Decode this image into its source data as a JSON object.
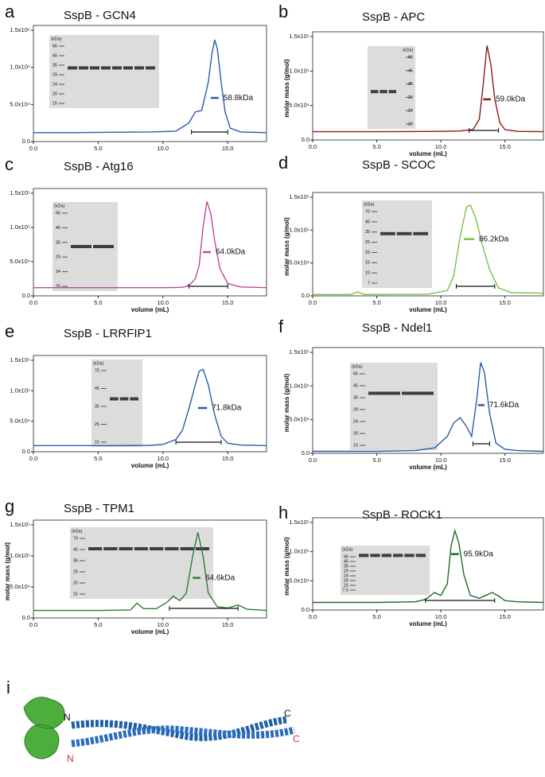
{
  "chart_data": [
    {
      "type": "line",
      "panel": "a",
      "title": "SspB - GCN4",
      "color": "#2a5caa",
      "x": [
        0,
        3,
        6,
        9,
        11,
        12,
        12.5,
        13,
        13.5,
        13.8,
        14,
        14.2,
        14.5,
        14.8,
        15.2,
        16,
        18
      ],
      "values": [
        12000,
        12000,
        12500,
        13000,
        14000,
        25000,
        40000,
        42000,
        80000,
        120000,
        137000,
        125000,
        80000,
        40000,
        18000,
        13000,
        12000
      ],
      "mass": {
        "x": [
          13.7,
          14.3
        ],
        "values": [
          58800,
          58800
        ]
      },
      "annotation": "58.8kDa",
      "range": [
        12.2,
        15.0
      ],
      "gel": {
        "unit": "(kDa)",
        "markers": [
          "66",
          "45",
          "35",
          "29",
          "24",
          "20",
          "15"
        ]
      },
      "xlim": [
        0,
        18
      ],
      "ylim": [
        0,
        150000
      ],
      "xticks": [
        {
          "value": 0,
          "label": "0.0"
        },
        {
          "value": 5,
          "label": "5.0"
        },
        {
          "value": 10,
          "label": "10.0"
        },
        {
          "value": 15,
          "label": "15.0"
        }
      ],
      "yticks": [
        {
          "value": 0,
          "label": "0.0"
        },
        {
          "value": 50000,
          "label": "5.0x10⁴"
        },
        {
          "value": 100000,
          "label": "1.0x10⁵"
        },
        {
          "value": 150000,
          "label": "1.5x10⁵"
        }
      ]
    },
    {
      "type": "line",
      "panel": "b",
      "title": "SspB - APC",
      "color": "#8b1a1a",
      "x_label": "volume (mL)",
      "y_label": "molar mass (g/mol)",
      "x": [
        0,
        5,
        10,
        11.5,
        12.5,
        13,
        13.3,
        13.6,
        13.9,
        14.2,
        14.6,
        15,
        16,
        18
      ],
      "values": [
        12000,
        12000,
        12500,
        13000,
        15000,
        30000,
        80000,
        137000,
        110000,
        60000,
        25000,
        15000,
        12500,
        12000
      ],
      "mass": {
        "x": [
          13.3,
          13.9
        ],
        "values": [
          59000,
          59000
        ]
      },
      "annotation": "59.0kDa",
      "range": [
        12.2,
        14.5
      ],
      "gel": {
        "unit": "(kDa)",
        "markers": [
          "66",
          "45",
          "35",
          "29",
          "24",
          "20"
        ]
      },
      "xlim": [
        0,
        18
      ],
      "ylim": [
        0,
        150000
      ],
      "xticks": [
        {
          "value": 0,
          "label": "0.0"
        },
        {
          "value": 5,
          "label": "5.0"
        },
        {
          "value": 10,
          "label": "10.0"
        },
        {
          "value": 15,
          "label": "15.0"
        }
      ],
      "yticks": [
        {
          "value": 0,
          "label": "0.0"
        },
        {
          "value": 50000,
          "label": "5.0x10⁴"
        },
        {
          "value": 100000,
          "label": "1.0x10⁵"
        },
        {
          "value": 150000,
          "label": "1.5x10⁵"
        }
      ]
    },
    {
      "type": "line",
      "panel": "c",
      "title": "SspB - Atg16",
      "color": "#c0489a",
      "x_label": "volume (mL)",
      "x": [
        0,
        5,
        10,
        11.5,
        12,
        12.5,
        12.8,
        13.1,
        13.4,
        13.7,
        14,
        14.4,
        15,
        16,
        18
      ],
      "values": [
        12000,
        12000,
        12000,
        12500,
        15000,
        25000,
        45000,
        100000,
        138000,
        120000,
        80000,
        40000,
        18000,
        13000,
        12000
      ],
      "mass": {
        "x": [
          13.1,
          13.7
        ],
        "values": [
          64000,
          64000
        ]
      },
      "annotation": "64.0kDa",
      "range": [
        12.0,
        15.0
      ],
      "gel": {
        "unit": "(kDa)",
        "markers": [
          "66",
          "45",
          "35",
          "29",
          "24",
          "20"
        ]
      },
      "xlim": [
        0,
        18
      ],
      "ylim": [
        0,
        150000
      ],
      "xticks": [
        {
          "value": 0,
          "label": "0.0"
        },
        {
          "value": 5,
          "label": "5.0"
        },
        {
          "value": 10,
          "label": "10.0"
        },
        {
          "value": 15,
          "label": "15.0"
        }
      ],
      "yticks": [
        {
          "value": 0,
          "label": "0.0"
        },
        {
          "value": 50000,
          "label": "5.0x10⁴"
        },
        {
          "value": 100000,
          "label": "1.0x10⁵"
        },
        {
          "value": 150000,
          "label": "1.5x10⁵"
        }
      ]
    },
    {
      "type": "line",
      "panel": "d",
      "title": "SspB - SCOC",
      "color": "#7ac143",
      "x_label": "volume (mL)",
      "y_label": "molar mass (g/mol)",
      "x": [
        0,
        3,
        3.5,
        4,
        9,
        10.5,
        11,
        11.5,
        12,
        12.3,
        12.7,
        13.2,
        13.8,
        14.5,
        15.5,
        18
      ],
      "values": [
        2000,
        2000,
        6000,
        2000,
        2500,
        8000,
        30000,
        90000,
        135000,
        138000,
        120000,
        80000,
        40000,
        12000,
        5000,
        4000
      ],
      "mass": {
        "x": [
          11.8,
          12.6
        ],
        "values": [
          86200,
          86200
        ]
      },
      "annotation": "86.2kDa",
      "range": [
        11.2,
        14.2
      ],
      "gel": {
        "unit": "(kDa)",
        "markers": [
          "70",
          "45",
          "35",
          "25",
          "20",
          "15",
          "10",
          "7"
        ]
      },
      "xlim": [
        0,
        18
      ],
      "ylim": [
        0,
        150000
      ],
      "xticks": [
        {
          "value": 0,
          "label": "0.0"
        },
        {
          "value": 5,
          "label": "5.0"
        },
        {
          "value": 10,
          "label": "10.0"
        },
        {
          "value": 15,
          "label": "15.0"
        }
      ],
      "yticks": [
        {
          "value": 0,
          "label": "0.0"
        },
        {
          "value": 50000,
          "label": "5.0x10⁴"
        },
        {
          "value": 100000,
          "label": "1.0x10⁵"
        },
        {
          "value": 150000,
          "label": "1.5x10⁵"
        }
      ]
    },
    {
      "type": "line",
      "panel": "e",
      "title": "SspB - LRRFIP1",
      "color": "#2a5caa",
      "x_label": "volume (mL)",
      "x": [
        0,
        5,
        9,
        10,
        11,
        11.5,
        12,
        12.5,
        12.8,
        13.1,
        13.5,
        14,
        14.5,
        15,
        16,
        18
      ],
      "values": [
        10000,
        10000,
        10500,
        12000,
        20000,
        35000,
        70000,
        110000,
        132000,
        135000,
        110000,
        60000,
        25000,
        14000,
        11000,
        10000
      ],
      "mass": {
        "x": [
          12.7,
          13.4
        ],
        "values": [
          71800,
          71800
        ]
      },
      "annotation": "71.8kDa",
      "range": [
        11.0,
        14.5
      ],
      "gel": {
        "unit": "(kDa)",
        "markers": [
          "70",
          "45",
          "35",
          "25",
          "15"
        ]
      },
      "xlim": [
        0,
        18
      ],
      "ylim": [
        0,
        150000
      ],
      "xticks": [
        {
          "value": 0,
          "label": "0.0"
        },
        {
          "value": 5,
          "label": "5.0"
        },
        {
          "value": 10,
          "label": "10.0"
        },
        {
          "value": 15,
          "label": "15.0"
        }
      ],
      "yticks": [
        {
          "value": 0,
          "label": "0.0"
        },
        {
          "value": 50000,
          "label": "5.0x10⁴"
        },
        {
          "value": 100000,
          "label": "1.0x10⁵"
        },
        {
          "value": 150000,
          "label": "1.5x10⁵"
        }
      ]
    },
    {
      "type": "line",
      "panel": "f",
      "title": "SspB - Ndel1",
      "color": "#2a5caa",
      "x_label": "volume (mL)",
      "y_label": "molar mass (g/mol)",
      "x": [
        0,
        5,
        8,
        9.5,
        10.5,
        11,
        11.5,
        12,
        12.4,
        12.8,
        13.1,
        13.4,
        13.8,
        14.3,
        15,
        16,
        18
      ],
      "values": [
        3000,
        3000,
        4000,
        8000,
        25000,
        45000,
        53000,
        40000,
        25000,
        80000,
        135000,
        120000,
        60000,
        15000,
        6000,
        4000,
        3000
      ],
      "mass": {
        "x": [
          12.9,
          13.4
        ],
        "values": [
          71600,
          71600
        ]
      },
      "annotation": "71.6kDa",
      "range": [
        12.5,
        13.8
      ],
      "gel": {
        "unit": "(kDa)",
        "markers": [
          "66",
          "45",
          "35",
          "29",
          "24",
          "20",
          "15"
        ]
      },
      "xlim": [
        0,
        18
      ],
      "ylim": [
        0,
        150000
      ],
      "xticks": [
        {
          "value": 0,
          "label": "0.0"
        },
        {
          "value": 5,
          "label": "5.0"
        },
        {
          "value": 10,
          "label": "10.0"
        },
        {
          "value": 15,
          "label": "15.0"
        }
      ],
      "yticks": [
        {
          "value": 0,
          "label": "0.0"
        },
        {
          "value": 50000,
          "label": "5.0x10⁴"
        },
        {
          "value": 100000,
          "label": "1.0x10⁵"
        },
        {
          "value": 150000,
          "label": "1.5x10⁵"
        }
      ]
    },
    {
      "type": "line",
      "panel": "g",
      "title": "SspB - TPM1",
      "color": "#2e7d32",
      "x_label": "volume (mL)",
      "y_label": "molar mass (g/mol)",
      "x": [
        0,
        5,
        7.5,
        8,
        8.5,
        9.5,
        10.3,
        10.8,
        11.3,
        11.8,
        12.3,
        12.7,
        13.1,
        13.5,
        14.2,
        15,
        15.8,
        16.5,
        18
      ],
      "values": [
        12000,
        12000,
        13000,
        24000,
        15000,
        15000,
        25000,
        35000,
        28000,
        40000,
        100000,
        138000,
        100000,
        40000,
        18000,
        16000,
        21000,
        14000,
        12000
      ],
      "mass": {
        "x": [
          12.3,
          12.9
        ],
        "values": [
          64600,
          64600
        ]
      },
      "annotation": "64.6kDa",
      "range": [
        10.5,
        15.8
      ],
      "gel": {
        "unit": "(kDa)",
        "markers": [
          "70",
          "45",
          "35",
          "25",
          "20",
          "15"
        ]
      },
      "xlim": [
        0,
        18
      ],
      "ylim": [
        0,
        150000
      ],
      "xticks": [
        {
          "value": 0,
          "label": "0.0"
        },
        {
          "value": 5,
          "label": "5.0"
        },
        {
          "value": 10,
          "label": "10.0"
        },
        {
          "value": 15,
          "label": "15.0"
        }
      ],
      "yticks": [
        {
          "value": 0,
          "label": "0.0"
        },
        {
          "value": 50000,
          "label": "5.0x10⁴"
        },
        {
          "value": 100000,
          "label": "1.0x10⁵"
        },
        {
          "value": 150000,
          "label": "1.5x10⁵"
        }
      ]
    },
    {
      "type": "line",
      "panel": "h",
      "title": "SspB - ROCK1",
      "color": "#1e6b2a",
      "x_label": "volume (mL)",
      "y_label": "molar mass (g/mol)",
      "x": [
        0,
        5,
        8,
        8.8,
        9.5,
        10,
        10.5,
        10.8,
        11.1,
        11.4,
        11.8,
        12.3,
        13,
        13.5,
        14,
        14.5,
        15,
        16,
        18
      ],
      "values": [
        13000,
        13000,
        14000,
        18000,
        30000,
        25000,
        45000,
        110000,
        136000,
        115000,
        60000,
        25000,
        20000,
        25000,
        30000,
        24000,
        16000,
        14000,
        13000
      ],
      "mass": {
        "x": [
          10.8,
          11.4
        ],
        "values": [
          95900,
          95900
        ]
      },
      "annotation": "95.9kDa",
      "range": [
        8.8,
        14.2
      ],
      "gel": {
        "unit": "(kDa)",
        "markers": [
          "66",
          "45",
          "35",
          "29",
          "24",
          "20",
          "15",
          "7.5"
        ]
      },
      "xlim": [
        0,
        18
      ],
      "ylim": [
        0,
        150000
      ],
      "xticks": [
        {
          "value": 0,
          "label": "0.0"
        },
        {
          "value": 5,
          "label": "5.0"
        },
        {
          "value": 10,
          "label": "10.0"
        },
        {
          "value": 15,
          "label": "15.0"
        }
      ],
      "yticks": [
        {
          "value": 0,
          "label": "0.0"
        },
        {
          "value": 50000,
          "label": "5.0x10⁴"
        },
        {
          "value": 100000,
          "label": "1.0x10⁵"
        },
        {
          "value": 150000,
          "label": "1.5x10⁵"
        }
      ]
    }
  ],
  "structure": {
    "panel": "i",
    "top_n": "N",
    "top_c": "C",
    "bottom_c": "C",
    "bottom_n": "N"
  }
}
